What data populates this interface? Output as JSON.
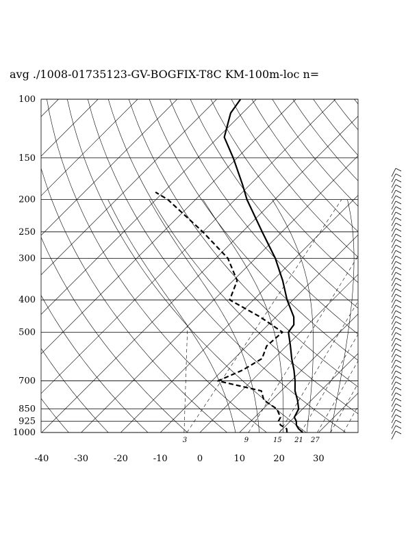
{
  "chart_data": {
    "type": "line",
    "title": "avg ./1008-01735123-GV-BOGFIX-T8C KM-100m-loc n=",
    "pressure_ticks": [
      100,
      150,
      200,
      250,
      300,
      400,
      500,
      700,
      850,
      925,
      1000
    ],
    "pressure_range": [
      100,
      1000
    ],
    "pressure_scale": "log",
    "temperature_ticks": [
      -40,
      -30,
      -20,
      -10,
      0,
      10,
      20,
      30
    ],
    "temperature_range": [
      -40,
      40
    ],
    "skew": "skew-T",
    "mixing_ratio_labels": [
      "3",
      "9",
      "15",
      "21",
      "27"
    ],
    "grid": true,
    "series": [
      {
        "style": "solid",
        "points": [
          {
            "p": 1000,
            "t": 26
          },
          {
            "p": 975,
            "t": 24
          },
          {
            "p": 950,
            "t": 22.5
          },
          {
            "p": 925,
            "t": 21.5
          },
          {
            "p": 900,
            "t": 20
          },
          {
            "p": 850,
            "t": 19
          },
          {
            "p": 800,
            "t": 16.5
          },
          {
            "p": 750,
            "t": 13.5
          },
          {
            "p": 700,
            "t": 11
          },
          {
            "p": 650,
            "t": 8
          },
          {
            "p": 600,
            "t": 4.5
          },
          {
            "p": 550,
            "t": 1
          },
          {
            "p": 500,
            "t": -3
          },
          {
            "p": 475,
            "t": -3.5
          },
          {
            "p": 450,
            "t": -5.5
          },
          {
            "p": 400,
            "t": -11.5
          },
          {
            "p": 350,
            "t": -17.5
          },
          {
            "p": 300,
            "t": -25
          },
          {
            "p": 250,
            "t": -35
          },
          {
            "p": 200,
            "t": -47
          },
          {
            "p": 180,
            "t": -52
          },
          {
            "p": 150,
            "t": -61
          },
          {
            "p": 130,
            "t": -68.5
          },
          {
            "p": 110,
            "t": -73
          },
          {
            "p": 100,
            "t": -74
          }
        ]
      },
      {
        "style": "dashed",
        "points": [
          {
            "p": 1000,
            "t": 22
          },
          {
            "p": 975,
            "t": 21
          },
          {
            "p": 950,
            "t": 18.5
          },
          {
            "p": 925,
            "t": 17
          },
          {
            "p": 900,
            "t": 16.5
          },
          {
            "p": 850,
            "t": 13.5
          },
          {
            "p": 800,
            "t": 8
          },
          {
            "p": 750,
            "t": 5
          },
          {
            "p": 700,
            "t": -8.5
          },
          {
            "p": 650,
            "t": -5
          },
          {
            "p": 600,
            "t": -3
          },
          {
            "p": 550,
            "t": -5
          },
          {
            "p": 500,
            "t": -4.5
          },
          {
            "p": 450,
            "t": -14
          },
          {
            "p": 400,
            "t": -26
          },
          {
            "p": 350,
            "t": -29
          },
          {
            "p": 300,
            "t": -37
          },
          {
            "p": 250,
            "t": -50
          },
          {
            "p": 200,
            "t": -67
          },
          {
            "p": 190,
            "t": -72
          }
        ]
      }
    ]
  }
}
